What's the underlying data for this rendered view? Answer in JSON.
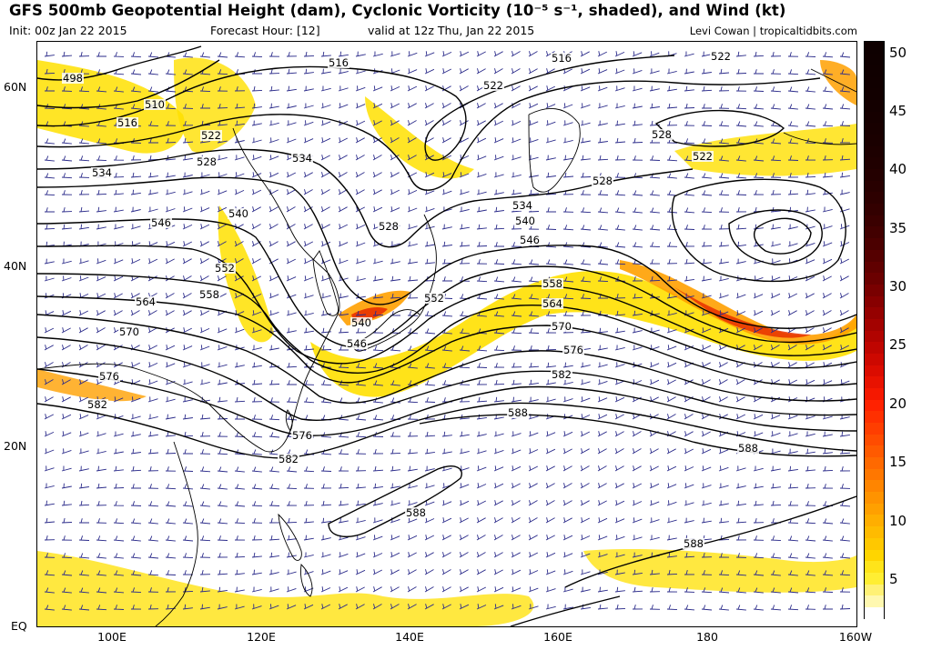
{
  "title": "GFS 500mb Geopotential Height (dam), Cyclonic Vorticity (10⁻⁵ s⁻¹, shaded), and Wind (kt)",
  "subtitle": {
    "init": "Init: 00z Jan 22 2015",
    "forecast_hour": "Forecast Hour: [12]",
    "valid": "valid at 12z Thu, Jan 22 2015",
    "credit": "Levi Cowan | tropicaltidbits.com"
  },
  "axes": {
    "lat_labels": [
      "60N",
      "40N",
      "20N",
      "EQ"
    ],
    "lon_labels": [
      "100E",
      "120E",
      "140E",
      "160E",
      "180",
      "160W"
    ]
  },
  "colorbar": {
    "labels": [
      "50",
      "45",
      "40",
      "35",
      "30",
      "25",
      "20",
      "15",
      "10",
      "5"
    ],
    "colors": [
      "#ffffff",
      "#fff8b0",
      "#fff176",
      "#ffee33",
      "#ffe41a",
      "#ffd500",
      "#ffc800",
      "#ffbb00",
      "#ffae00",
      "#ffa000",
      "#ff9300",
      "#ff8500",
      "#ff7700",
      "#ff6900",
      "#ff5a00",
      "#ff4c00",
      "#ff3e00",
      "#ff3000",
      "#ff2200",
      "#f51800",
      "#e81200",
      "#db0c00",
      "#cd0800",
      "#bf0500",
      "#b10300",
      "#a30200",
      "#950100",
      "#870000",
      "#790000",
      "#6b0000",
      "#600000",
      "#550000",
      "#4b0000",
      "#420000",
      "#3a0000",
      "#330000",
      "#2d0000",
      "#280000",
      "#240000",
      "#200000",
      "#1d0000",
      "#1a0000",
      "#180000",
      "#160000",
      "#140000",
      "#120000",
      "#110000",
      "#100000",
      "#0f0000",
      "#0e0000"
    ]
  },
  "contour_labels": [
    "498",
    "510",
    "516",
    "522",
    "528",
    "534",
    "540",
    "546",
    "552",
    "558",
    "564",
    "570",
    "576",
    "582",
    "588"
  ],
  "colors": {
    "contour": "#000000",
    "coastline": "#000000",
    "wind_barb": "#2b2b8a",
    "vorticity_low": "#ffe000",
    "vorticity_mid": "#ffa000",
    "vorticity_high": "#e83000"
  }
}
